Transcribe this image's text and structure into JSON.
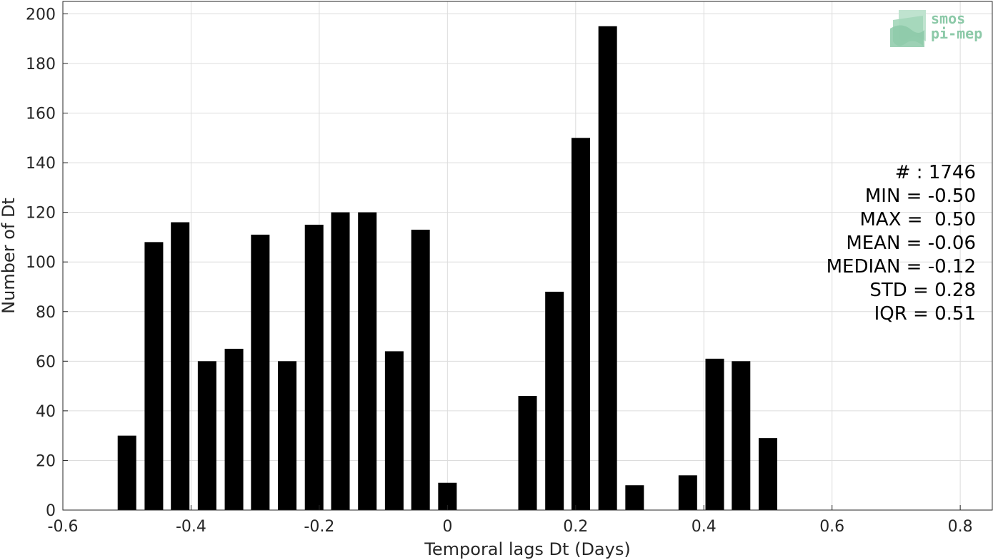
{
  "chart_data": {
    "type": "bar",
    "title": "",
    "xlabel": "Temporal lags Dt (Days)",
    "ylabel": "Number of Dt",
    "xlim": [
      -0.6,
      0.85
    ],
    "ylim": [
      0,
      205
    ],
    "grid": true,
    "xticks": [
      "-0.6",
      "-0.4",
      "-0.2",
      "0",
      "0.2",
      "0.4",
      "0.6",
      "0.8"
    ],
    "yticks": [
      "0",
      "20",
      "40",
      "60",
      "80",
      "100",
      "120",
      "140",
      "160",
      "180",
      "200"
    ],
    "x": [
      -0.5,
      -0.458,
      -0.417,
      -0.375,
      -0.333,
      -0.292,
      -0.25,
      -0.208,
      -0.167,
      -0.125,
      -0.083,
      -0.042,
      0.0,
      0.125,
      0.167,
      0.208,
      0.25,
      0.292,
      0.375,
      0.417,
      0.458,
      0.5
    ],
    "values": [
      30,
      108,
      116,
      60,
      65,
      111,
      60,
      115,
      120,
      120,
      64,
      113,
      11,
      46,
      88,
      150,
      195,
      10,
      14,
      61,
      60,
      29
    ],
    "bar_color": "#000000"
  },
  "stats": [
    "# : 1746",
    "MIN = -0.50",
    "MAX =  0.50",
    "MEAN = -0.06",
    "MEDIAN = -0.12",
    "STD = 0.28",
    "IQR = 0.51"
  ],
  "logo": {
    "line1": "smos",
    "line2": "pi-mep",
    "color": "#8cc9a8"
  }
}
